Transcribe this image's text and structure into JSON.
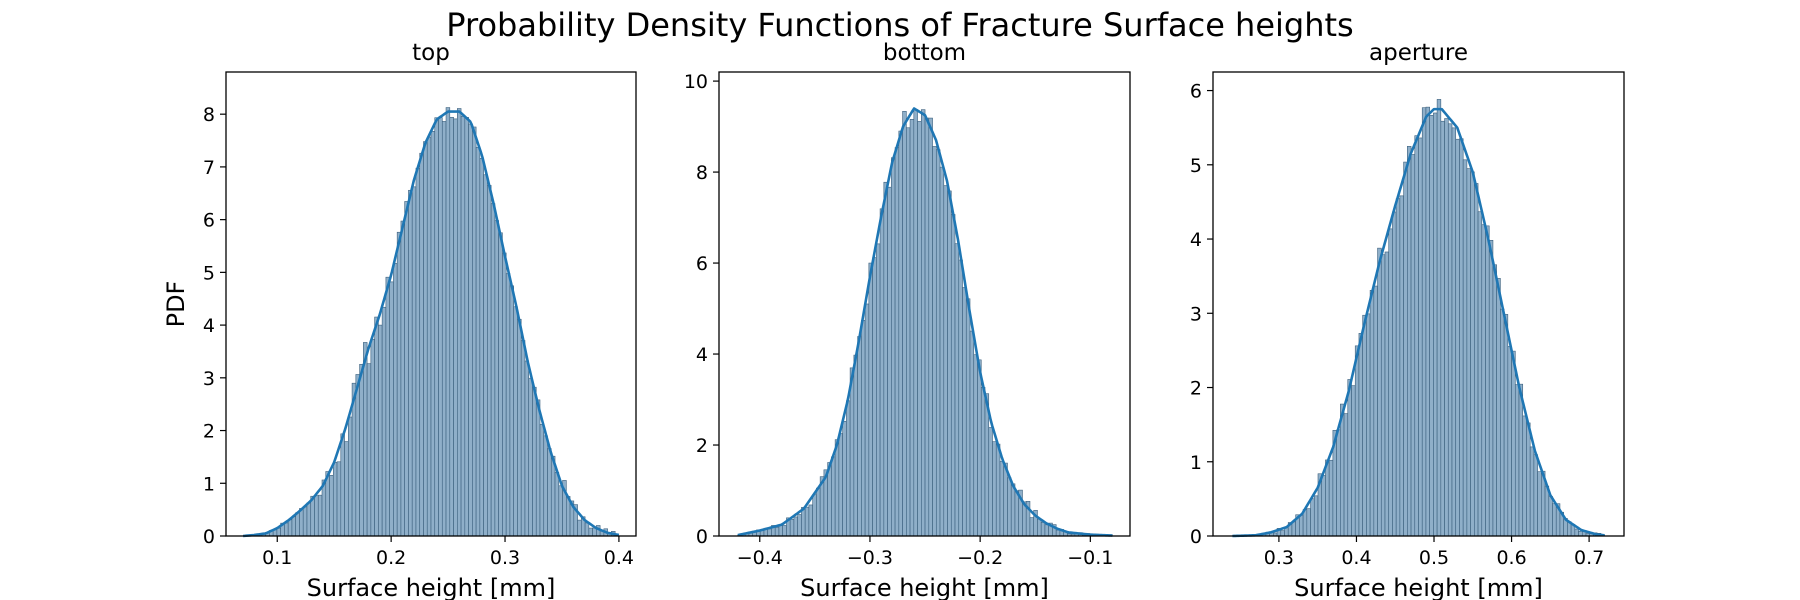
{
  "figure": {
    "title": "Probability Density Functions of Fracture Surface heights"
  },
  "style": {
    "bar_fill": "#8fafc9",
    "bar_edge": "#3a5f7d",
    "kde_color": "#1f77b4",
    "axes_color": "#000000"
  },
  "chart_data": [
    {
      "type": "bar",
      "subtitle": "top",
      "xlabel": "Surface height [mm]",
      "ylabel": "PDF",
      "xlim": [
        0.055,
        0.415
      ],
      "ylim": [
        0,
        8.8
      ],
      "xticks": [
        0.1,
        0.2,
        0.3,
        0.4
      ],
      "xtick_labels": [
        "0.1",
        "0.2",
        "0.3",
        "0.4"
      ],
      "yticks": [
        0,
        1,
        2,
        3,
        4,
        5,
        6,
        7,
        8
      ],
      "ytick_labels": [
        "0",
        "1",
        "2",
        "3",
        "4",
        "5",
        "6",
        "7",
        "8"
      ],
      "bins": [
        0.07,
        0.4,
        100
      ],
      "density": [
        [
          0.07,
          0
        ],
        [
          0.08,
          0.02
        ],
        [
          0.09,
          0.05
        ],
        [
          0.1,
          0.15
        ],
        [
          0.11,
          0.3
        ],
        [
          0.12,
          0.48
        ],
        [
          0.13,
          0.68
        ],
        [
          0.14,
          0.95
        ],
        [
          0.15,
          1.4
        ],
        [
          0.16,
          2.05
        ],
        [
          0.17,
          2.8
        ],
        [
          0.18,
          3.55
        ],
        [
          0.19,
          4.2
        ],
        [
          0.2,
          4.95
        ],
        [
          0.21,
          5.85
        ],
        [
          0.22,
          6.75
        ],
        [
          0.23,
          7.45
        ],
        [
          0.24,
          7.9
        ],
        [
          0.25,
          8.05
        ],
        [
          0.26,
          8.05
        ],
        [
          0.27,
          7.85
        ],
        [
          0.28,
          7.2
        ],
        [
          0.29,
          6.3
        ],
        [
          0.3,
          5.3
        ],
        [
          0.31,
          4.35
        ],
        [
          0.32,
          3.3
        ],
        [
          0.33,
          2.4
        ],
        [
          0.34,
          1.6
        ],
        [
          0.35,
          0.95
        ],
        [
          0.36,
          0.55
        ],
        [
          0.37,
          0.3
        ],
        [
          0.38,
          0.15
        ],
        [
          0.39,
          0.06
        ],
        [
          0.4,
          0.02
        ]
      ],
      "noise": [
        0.05,
        0.1,
        0.15,
        0.35,
        0.25,
        0.2,
        0.15,
        0.1,
        0.12,
        0.1,
        0.2,
        0.25
      ],
      "seed": 11
    },
    {
      "type": "bar",
      "subtitle": "bottom",
      "xlabel": "Surface height [mm]",
      "ylabel": "",
      "xlim": [
        -0.437,
        -0.064
      ],
      "ylim": [
        0,
        10.2
      ],
      "xticks": [
        -0.4,
        -0.3,
        -0.2,
        -0.1
      ],
      "xtick_labels": [
        "−0.4",
        "−0.3",
        "−0.2",
        "−0.1"
      ],
      "yticks": [
        0,
        2,
        4,
        6,
        8,
        10
      ],
      "ytick_labels": [
        "0",
        "2",
        "4",
        "6",
        "8",
        "10"
      ],
      "bins": [
        -0.42,
        -0.08,
        100
      ],
      "density": [
        [
          -0.42,
          0.02
        ],
        [
          -0.4,
          0.12
        ],
        [
          -0.38,
          0.25
        ],
        [
          -0.36,
          0.6
        ],
        [
          -0.34,
          1.3
        ],
        [
          -0.33,
          2.0
        ],
        [
          -0.32,
          3.0
        ],
        [
          -0.31,
          4.3
        ],
        [
          -0.3,
          5.7
        ],
        [
          -0.29,
          7.0
        ],
        [
          -0.28,
          8.2
        ],
        [
          -0.27,
          9.0
        ],
        [
          -0.26,
          9.4
        ],
        [
          -0.25,
          9.25
        ],
        [
          -0.24,
          8.7
        ],
        [
          -0.23,
          7.8
        ],
        [
          -0.22,
          6.5
        ],
        [
          -0.21,
          5.0
        ],
        [
          -0.2,
          3.6
        ],
        [
          -0.19,
          2.5
        ],
        [
          -0.18,
          1.7
        ],
        [
          -0.17,
          1.1
        ],
        [
          -0.16,
          0.7
        ],
        [
          -0.15,
          0.45
        ],
        [
          -0.14,
          0.28
        ],
        [
          -0.13,
          0.16
        ],
        [
          -0.12,
          0.08
        ],
        [
          -0.1,
          0.03
        ],
        [
          -0.08,
          0.01
        ]
      ],
      "noise": [
        0.1,
        0.15,
        0.2,
        0.3,
        0.3,
        0.25,
        0.2,
        0.2,
        0.15,
        0.1
      ],
      "seed": 23
    },
    {
      "type": "bar",
      "subtitle": "aperture",
      "xlabel": "Surface height [mm]",
      "ylabel": "",
      "xlim": [
        0.215,
        0.745
      ],
      "ylim": [
        0,
        6.25
      ],
      "xticks": [
        0.3,
        0.4,
        0.5,
        0.6,
        0.7
      ],
      "xtick_labels": [
        "0.3",
        "0.4",
        "0.5",
        "0.6",
        "0.7"
      ],
      "yticks": [
        0,
        1,
        2,
        3,
        4,
        5,
        6
      ],
      "ytick_labels": [
        "0",
        "1",
        "2",
        "3",
        "4",
        "5",
        "6"
      ],
      "bins": [
        0.24,
        0.72,
        100
      ],
      "density": [
        [
          0.24,
          0
        ],
        [
          0.27,
          0.01
        ],
        [
          0.29,
          0.05
        ],
        [
          0.31,
          0.12
        ],
        [
          0.33,
          0.3
        ],
        [
          0.35,
          0.65
        ],
        [
          0.37,
          1.2
        ],
        [
          0.39,
          1.95
        ],
        [
          0.41,
          2.85
        ],
        [
          0.43,
          3.7
        ],
        [
          0.45,
          4.45
        ],
        [
          0.47,
          5.15
        ],
        [
          0.49,
          5.65
        ],
        [
          0.5,
          5.75
        ],
        [
          0.51,
          5.75
        ],
        [
          0.53,
          5.5
        ],
        [
          0.55,
          4.9
        ],
        [
          0.57,
          4.0
        ],
        [
          0.59,
          3.0
        ],
        [
          0.61,
          2.0
        ],
        [
          0.63,
          1.15
        ],
        [
          0.65,
          0.55
        ],
        [
          0.67,
          0.22
        ],
        [
          0.69,
          0.08
        ],
        [
          0.71,
          0.02
        ],
        [
          0.72,
          0.01
        ]
      ],
      "noise": [
        0.1,
        0.12,
        0.15,
        0.2,
        0.22,
        0.2,
        0.18,
        0.15,
        0.12,
        0.1
      ],
      "seed": 37
    }
  ]
}
